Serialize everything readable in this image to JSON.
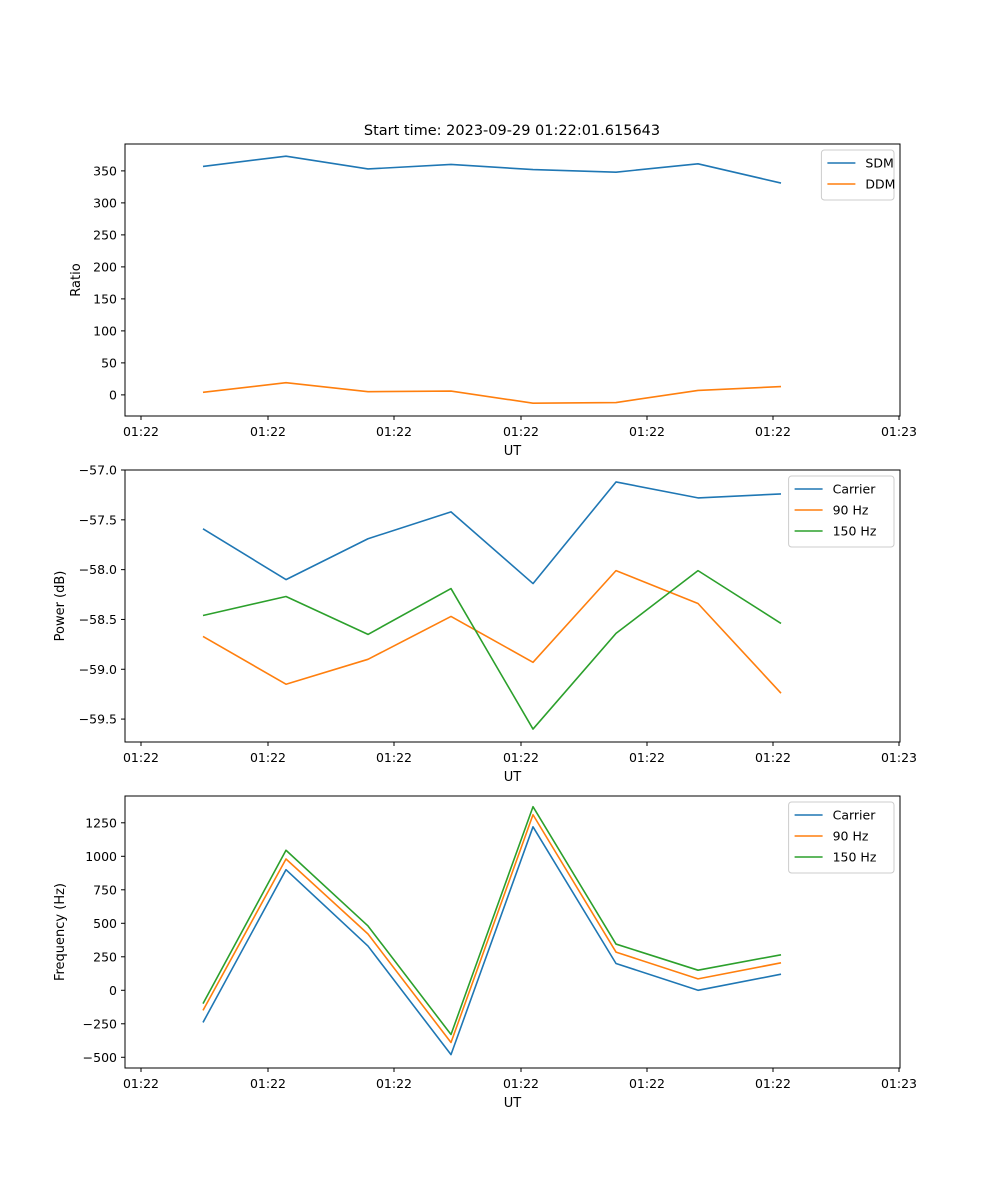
{
  "figure_title": "Start time: 2023-09-29 01:22:01.615643",
  "chart_data": [
    {
      "type": "line",
      "title": "Start time: 2023-09-29 01:22:01.615643",
      "xlabel": "UT",
      "ylabel": "Ratio",
      "x_tick_labels": [
        "01:22",
        "01:22",
        "01:22",
        "01:22",
        "01:22",
        "01:22",
        "01:23"
      ],
      "ylim": [
        -33,
        392
      ],
      "y_ticks": [
        0,
        50,
        100,
        150,
        200,
        250,
        300,
        350
      ],
      "y_tick_labels": [
        "0",
        "50",
        "100",
        "150",
        "200",
        "250",
        "300",
        "350"
      ],
      "legend_position": "top-right",
      "series": [
        {
          "name": "SDM",
          "color": "#1f77b4",
          "values": [
            357,
            373,
            353,
            360,
            352,
            348,
            361,
            331
          ]
        },
        {
          "name": "DDM",
          "color": "#ff7f0e",
          "values": [
            4,
            19,
            5,
            6,
            -13,
            -12,
            7,
            13
          ]
        }
      ]
    },
    {
      "type": "line",
      "title": "",
      "xlabel": "UT",
      "ylabel": "Power (dB)",
      "x_tick_labels": [
        "01:22",
        "01:22",
        "01:22",
        "01:22",
        "01:22",
        "01:22",
        "01:23"
      ],
      "ylim": [
        -59.73,
        -57.0
      ],
      "y_ticks": [
        -59.5,
        -59.0,
        -58.5,
        -58.0,
        -57.5,
        -57.0
      ],
      "y_tick_labels": [
        "−59.5",
        "−59.0",
        "−58.5",
        "−58.0",
        "−57.5",
        "−57.0"
      ],
      "legend_position": "top-right",
      "series": [
        {
          "name": "Carrier",
          "color": "#1f77b4",
          "values": [
            -57.59,
            -58.1,
            -57.69,
            -57.42,
            -58.14,
            -57.12,
            -57.28,
            -57.24
          ]
        },
        {
          "name": "90 Hz",
          "color": "#ff7f0e",
          "values": [
            -58.67,
            -59.15,
            -58.9,
            -58.47,
            -58.93,
            -58.01,
            -58.34,
            -59.24
          ]
        },
        {
          "name": "150 Hz",
          "color": "#2ca02c",
          "values": [
            -58.46,
            -58.27,
            -58.65,
            -58.19,
            -59.6,
            -58.64,
            -58.01,
            -58.54
          ]
        }
      ]
    },
    {
      "type": "line",
      "title": "",
      "xlabel": "UT",
      "ylabel": "Frequency (Hz)",
      "x_tick_labels": [
        "01:22",
        "01:22",
        "01:22",
        "01:22",
        "01:22",
        "01:22",
        "01:23"
      ],
      "ylim": [
        -580,
        1450
      ],
      "y_ticks": [
        -500,
        -250,
        0,
        250,
        500,
        750,
        1000,
        1250
      ],
      "y_tick_labels": [
        "−500",
        "−250",
        "0",
        "250",
        "500",
        "750",
        "1000",
        "1250"
      ],
      "legend_position": "top-right",
      "series": [
        {
          "name": "Carrier",
          "color": "#1f77b4",
          "values": [
            -240,
            900,
            330,
            -480,
            1220,
            200,
            0,
            120
          ]
        },
        {
          "name": "90 Hz",
          "color": "#ff7f0e",
          "values": [
            -150,
            980,
            420,
            -390,
            1310,
            285,
            85,
            205
          ]
        },
        {
          "name": "150 Hz",
          "color": "#2ca02c",
          "values": [
            -100,
            1045,
            480,
            -330,
            1370,
            345,
            150,
            265
          ]
        }
      ]
    }
  ]
}
